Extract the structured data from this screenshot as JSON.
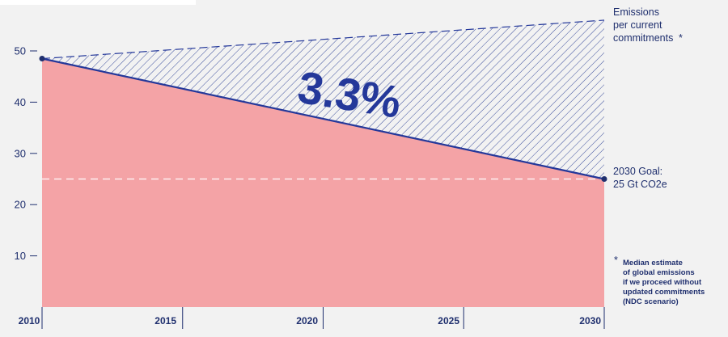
{
  "chart_data": {
    "type": "area",
    "title": "",
    "xlabel": "",
    "ylabel": "",
    "xlim": [
      2010,
      2030
    ],
    "ylim": [
      0,
      55
    ],
    "x_ticks": [
      "2010",
      "2015",
      "2020",
      "2025",
      "2030"
    ],
    "y_ticks": [
      "10",
      "20",
      "30",
      "40",
      "50"
    ],
    "series": [
      {
        "name": "",
        "style": "solid area",
        "color": "#f4a3a6",
        "x": [
          2010,
          2030
        ],
        "values": [
          48.5,
          25
        ]
      },
      {
        "name": "",
        "style": "dashed line, hatched gap",
        "color": "#24389a",
        "x": [
          2010,
          2030
        ],
        "values": [
          48.5,
          56
        ]
      }
    ],
    "goal_line": {
      "value": 25,
      "style": "dashed",
      "color": "#ffffff"
    },
    "headline": "3.3%",
    "annotations": {
      "current_commitments": [
        "Emissions",
        "per current",
        "commitments"
      ],
      "current_commitments_star": "*",
      "goal": [
        "2030 Goal:",
        "25 Gt CO2e"
      ],
      "footnote_star": "*",
      "footnote": [
        "Median estimate",
        "of global emissions",
        "if we proceed without",
        "updated commitments",
        "(NDC scenario)"
      ]
    },
    "grid": false
  }
}
